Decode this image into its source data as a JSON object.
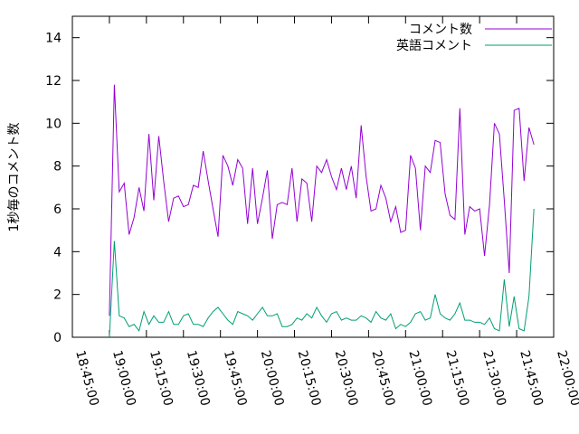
{
  "chart_data": {
    "type": "line",
    "ylabel": "1秒毎のコメント数",
    "xlim": [
      "18:45:00",
      "22:00:00"
    ],
    "xticks": [
      "18:45:00",
      "19:00:00",
      "19:15:00",
      "19:30:00",
      "19:45:00",
      "20:00:00",
      "20:15:00",
      "20:30:00",
      "20:45:00",
      "21:00:00",
      "21:15:00",
      "21:30:00",
      "21:45:00",
      "22:00:00"
    ],
    "ylim": [
      0,
      15
    ],
    "yticks": [
      0,
      2,
      4,
      6,
      8,
      10,
      12,
      14
    ],
    "legend": "top-right",
    "x": [
      "19:00:00",
      "19:02:00",
      "19:04:00",
      "19:06:00",
      "19:08:00",
      "19:10:00",
      "19:12:00",
      "19:14:00",
      "19:16:00",
      "19:18:00",
      "19:20:00",
      "19:22:00",
      "19:24:00",
      "19:26:00",
      "19:28:00",
      "19:30:00",
      "19:32:00",
      "19:34:00",
      "19:36:00",
      "19:38:00",
      "19:40:00",
      "19:42:00",
      "19:44:00",
      "19:46:00",
      "19:48:00",
      "19:50:00",
      "19:52:00",
      "19:54:00",
      "19:56:00",
      "19:58:00",
      "20:00:00",
      "20:02:00",
      "20:04:00",
      "20:06:00",
      "20:08:00",
      "20:10:00",
      "20:12:00",
      "20:14:00",
      "20:16:00",
      "20:18:00",
      "20:20:00",
      "20:22:00",
      "20:24:00",
      "20:26:00",
      "20:28:00",
      "20:30:00",
      "20:32:00",
      "20:34:00",
      "20:36:00",
      "20:38:00",
      "20:40:00",
      "20:42:00",
      "20:44:00",
      "20:46:00",
      "20:48:00",
      "20:50:00",
      "20:52:00",
      "20:54:00",
      "20:56:00",
      "20:58:00",
      "21:00:00",
      "21:02:00",
      "21:04:00",
      "21:06:00",
      "21:08:00",
      "21:10:00",
      "21:12:00",
      "21:14:00",
      "21:16:00",
      "21:18:00",
      "21:20:00",
      "21:22:00",
      "21:24:00",
      "21:26:00",
      "21:28:00",
      "21:30:00",
      "21:32:00",
      "21:34:00",
      "21:36:00",
      "21:38:00",
      "21:40:00",
      "21:42:00",
      "21:44:00",
      "21:46:00",
      "21:48:00",
      "21:50:00",
      "21:52:00"
    ],
    "series": [
      {
        "name": "コメント数",
        "color": "#9400d3",
        "values": [
          1.0,
          11.8,
          6.8,
          7.2,
          4.8,
          5.6,
          7.0,
          5.9,
          9.5,
          6.4,
          9.4,
          7.3,
          5.4,
          6.5,
          6.6,
          6.1,
          6.2,
          7.1,
          7.0,
          8.7,
          7.3,
          6.0,
          4.7,
          8.5,
          8.0,
          7.1,
          8.3,
          7.9,
          5.3,
          7.9,
          5.3,
          6.5,
          7.8,
          4.6,
          6.2,
          6.3,
          6.2,
          7.9,
          5.4,
          7.4,
          7.2,
          5.4,
          8.0,
          7.7,
          8.3,
          7.5,
          6.9,
          7.9,
          6.9,
          8.0,
          6.5,
          9.9,
          7.5,
          5.9,
          6.0,
          7.1,
          6.5,
          5.4,
          6.1,
          4.9,
          5.0,
          8.5,
          7.9,
          5.0,
          8.0,
          7.7,
          9.2,
          9.1,
          6.7,
          5.7,
          5.5,
          10.7,
          4.8,
          6.1,
          5.9,
          6.0,
          3.8,
          6.2,
          10.0,
          9.5,
          6.4,
          3.0,
          10.6,
          10.7,
          7.3,
          9.8,
          9.0
        ]
      },
      {
        "name": "英語コメント",
        "color": "#009e73",
        "values": [
          0.0,
          4.5,
          1.0,
          0.9,
          0.5,
          0.6,
          0.3,
          1.2,
          0.6,
          1.0,
          0.7,
          0.7,
          1.2,
          0.6,
          0.6,
          1.0,
          1.1,
          0.6,
          0.6,
          0.5,
          0.9,
          1.2,
          1.4,
          1.1,
          0.8,
          0.6,
          1.2,
          1.1,
          1.0,
          0.8,
          1.1,
          1.4,
          1.0,
          1.0,
          1.1,
          0.5,
          0.5,
          0.6,
          0.9,
          0.8,
          1.1,
          0.9,
          1.4,
          1.0,
          0.7,
          1.1,
          1.2,
          0.8,
          0.9,
          0.8,
          0.8,
          1.0,
          0.9,
          0.7,
          1.2,
          0.9,
          0.8,
          1.1,
          0.4,
          0.6,
          0.5,
          0.7,
          1.1,
          1.2,
          0.8,
          0.9,
          2.0,
          1.1,
          0.9,
          0.8,
          1.1,
          1.6,
          0.8,
          0.8,
          0.7,
          0.7,
          0.6,
          0.9,
          0.4,
          0.3,
          2.7,
          0.5,
          1.9,
          0.4,
          0.3,
          1.9,
          6.0
        ]
      }
    ]
  }
}
